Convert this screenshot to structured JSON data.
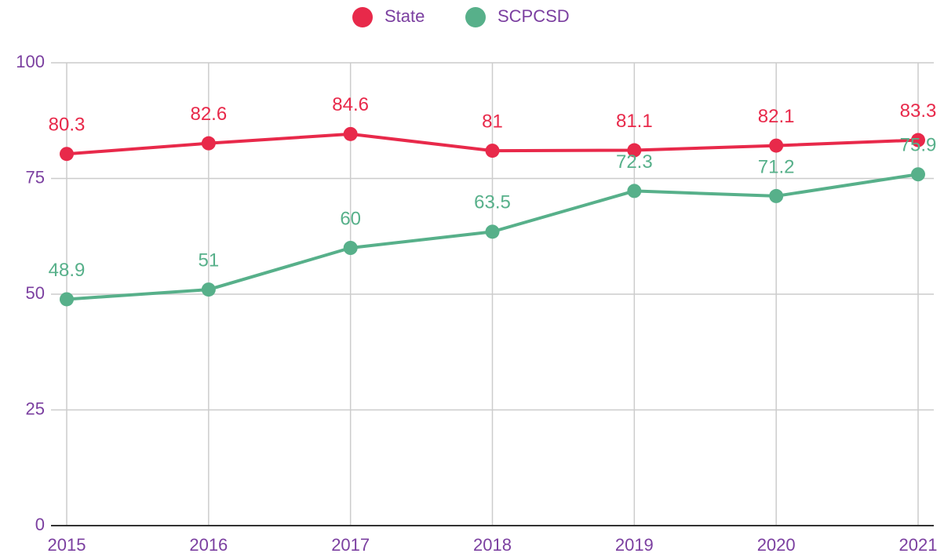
{
  "chart_data": {
    "type": "line",
    "categories": [
      "2015",
      "2016",
      "2017",
      "2018",
      "2019",
      "2020",
      "2021"
    ],
    "series": [
      {
        "name": "State",
        "color": "#e8294a",
        "values": [
          80.3,
          82.6,
          84.6,
          81,
          81.1,
          82.1,
          83.3
        ]
      },
      {
        "name": "SCPCSD",
        "color": "#57b08a",
        "values": [
          48.9,
          51,
          60,
          63.5,
          72.3,
          71.2,
          75.9
        ]
      }
    ],
    "ylim": [
      0,
      100
    ],
    "yticks": [
      0,
      25,
      50,
      75,
      100
    ],
    "grid": true,
    "legend": "top"
  }
}
